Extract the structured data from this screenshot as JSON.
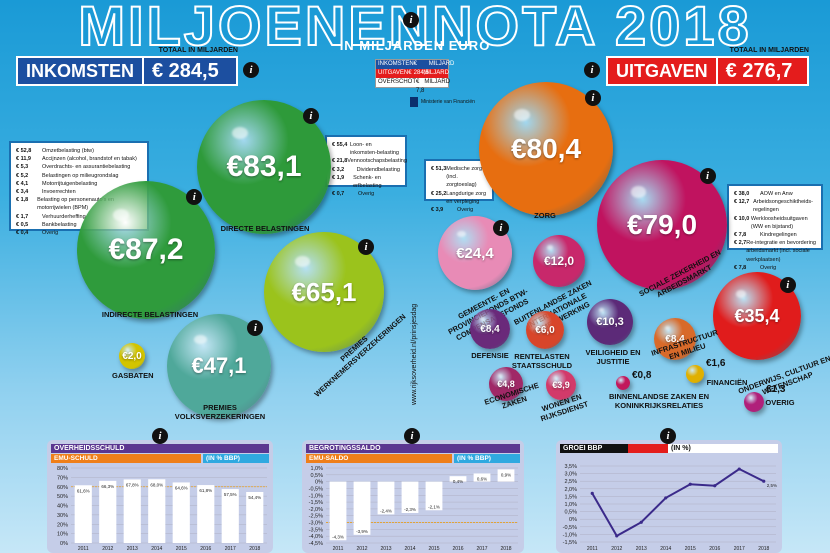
{
  "header": {
    "title": "MILJOENENNOTA 2018",
    "subtitle": "IN MILJARDEN EURO"
  },
  "income": {
    "caption": "TOTAAL IN MILJARDEN",
    "label": "INKOMSTEN",
    "value": "€ 284,5"
  },
  "expense": {
    "caption": "TOTAAL IN MILJARDEN",
    "label": "UITGAVEN",
    "value": "€ 276,7"
  },
  "summary": {
    "rows": [
      {
        "label": "INKOMSTEN",
        "value": "€ 284,5",
        "unit": "MILJARD"
      },
      {
        "label": "UITGAVEN",
        "value": "€ 276,7",
        "unit": "MILJARD"
      },
      {
        "label": "OVERSCHOT",
        "value": "€ 7,8",
        "unit": "MILJARD"
      }
    ],
    "ministry": "Ministerie van Financiën"
  },
  "side_text": "www.rijksoverheid.nl/prinsjesdag",
  "legend_indirect": [
    [
      "€ 52,8",
      "Omzetbelasting (btw)"
    ],
    [
      "€ 11,9",
      "Accijnzen (alcohol, brandstof en tabak)"
    ],
    [
      "€ 5,3",
      "Overdrachts- en assurantiebelasting"
    ],
    [
      "€ 5,2",
      "Belastingen op milieugrondslag"
    ],
    [
      "€ 4,1",
      "Motorrijtuigenbelasting"
    ],
    [
      "€ 3,4",
      "Invoerrechten"
    ],
    [
      "€ 1,8",
      "Belasting op personenauto's en motorrijwielen (BPM)"
    ],
    [
      "€ 1,7",
      "Verhuurderheffing"
    ],
    [
      "€ 0,5",
      "Bankbelasting"
    ],
    [
      "€ 0,4",
      "Overig"
    ]
  ],
  "legend_direct": [
    [
      "€ 55,4",
      "Loon- en inkomsten-belasting"
    ],
    [
      "€ 21,8",
      "Vennootschapsbelasting"
    ],
    [
      "€ 3,2",
      "Dividendbelasting"
    ],
    [
      "€ 1,9",
      "Schenk- en erfbelasting"
    ],
    [
      "€ 0,7",
      "Overig"
    ]
  ],
  "legend_zorg": [
    [
      "€ 51,3",
      "Medische zorg (incl. zorgtoeslag)"
    ],
    [
      "€ 25,2",
      "Langdurige zorg en verpleging"
    ],
    [
      "€ 3,9",
      "Overig"
    ]
  ],
  "legend_social": [
    [
      "€ 38,0",
      "AOW en Anw"
    ],
    [
      "€ 12,7",
      "Arbeidsongeschiktheids-regelingen"
    ],
    [
      "€ 10,0",
      "Werkloosheidsuitgaven (WW en bijstand)"
    ],
    [
      "€ 7,8",
      "Kindregelingen"
    ],
    [
      "€ 2,7",
      "Re-integratie en bevordering arbeidsmarkt (incl. sociale werkplaatsen)"
    ],
    [
      "€ 7,8",
      "Overig"
    ]
  ],
  "balls": [
    {
      "id": "directe",
      "value": "€83,1",
      "label": "DIRECTE BELASTINGEN",
      "color": "#2e9a3a"
    },
    {
      "id": "indirecte",
      "value": "€87,2",
      "label": "INDIRECTE BELASTINGEN",
      "color": "#2f9b3c"
    },
    {
      "id": "werknemers",
      "value": "€65,1",
      "label": "PREMIES WERKNEMERSVERZEKERINGEN",
      "color": "#9bc31c"
    },
    {
      "id": "volks",
      "value": "€47,1",
      "label": "PREMIES VOLKSVERZEKERINGEN",
      "color": "#4fa89a"
    },
    {
      "id": "gas",
      "value": "€2,0",
      "label": "GASBATEN",
      "color": "#d3c400"
    },
    {
      "id": "zorg",
      "value": "€80,4",
      "label": "ZORG",
      "color": "#e76e10"
    },
    {
      "id": "sociaal",
      "value": "€79,0",
      "label": "SOCIALE ZEKERHEID EN ARBEIDSMARKT",
      "color": "#c0135f"
    },
    {
      "id": "gemeenten",
      "value": "€24,4",
      "label": "GEMEENTE- EN PROVINCIEFONDS BTW-COMPENSATIEFONDS",
      "color": "#e88bb6"
    },
    {
      "id": "internationaal",
      "value": "€12,0",
      "label": "BUITENLANDSE ZAKEN INTERNATIONALE SAMENWERKING",
      "color": "#c8286b"
    },
    {
      "id": "onderwijs",
      "value": "€35,4",
      "label": "ONDERWIJS, CULTUUR EN WETENSCHAP",
      "color": "#e01c1c"
    },
    {
      "id": "defensie",
      "value": "€8,4",
      "label": "DEFENSIE",
      "color": "#6a2a7a"
    },
    {
      "id": "rente",
      "value": "€6,0",
      "label": "RENTELASTEN STAATSSCHULD",
      "color": "#d8452a"
    },
    {
      "id": "veiligheid",
      "value": "€10,3",
      "label": "VEILIGHEID EN JUSTITIE",
      "color": "#5c2a78"
    },
    {
      "id": "infra",
      "value": "€8,4",
      "label": "INFRASTRUCTUUR EN MILIEU",
      "color": "#d86a2a"
    },
    {
      "id": "economie",
      "value": "€4,8",
      "label": "ECONOMISCHE ZAKEN",
      "color": "#a02867"
    },
    {
      "id": "wonen",
      "value": "€3,9",
      "label": "WONEN EN RIJKSDIENST",
      "color": "#d23a6a"
    },
    {
      "id": "koninkrijk",
      "value": "€0,8",
      "label": "BINNENLANDSE ZAKEN EN KONINKRIJKSRELATIES",
      "color": "#c2185b"
    },
    {
      "id": "financien",
      "value": "€1,6",
      "label": "FINANCIËN",
      "color": "#e0b000"
    },
    {
      "id": "overig",
      "value": "€1,3",
      "label": "OVERIG",
      "color": "#b0207a"
    }
  ],
  "panels": {
    "schuld": {
      "title": "OVERHEIDSSCHULD",
      "bar": "EMU-SCHULD",
      "unit": "(IN % BBP)"
    },
    "saldo": {
      "title": "BEGROTINGSSALDO",
      "bar": "EMU-SALDO",
      "unit": "(IN % BBP)"
    },
    "groei": {
      "title": "GROEI BBP",
      "unit": "(IN %)"
    }
  },
  "chart_data": [
    {
      "type": "bar",
      "title": "OVERHEIDSSCHULD",
      "subtitle": "EMU-SCHULD (IN % BBP)",
      "categories": [
        "2011",
        "2012",
        "2013",
        "2014",
        "2015",
        "2016",
        "2017",
        "2018"
      ],
      "values": [
        61.6,
        66.3,
        67.8,
        68.0,
        64.6,
        61.8,
        57.5,
        54.4
      ],
      "labels": [
        "61,6%",
        "66,3%",
        "67,8%",
        "68,0%",
        "64,6%",
        "61,8%",
        "57,5%",
        "54,4%"
      ],
      "ylim": [
        0,
        80
      ],
      "yticks": [
        "0%",
        "10%",
        "20%",
        "30%",
        "40%",
        "50%",
        "60%",
        "70%",
        "80%"
      ],
      "ref_lines": [
        60
      ]
    },
    {
      "type": "bar",
      "title": "BEGROTINGSSALDO",
      "subtitle": "EMU-SALDO (IN % BBP)",
      "categories": [
        "2011",
        "2012",
        "2013",
        "2014",
        "2015",
        "2016",
        "2017",
        "2018"
      ],
      "values": [
        -4.3,
        -3.9,
        -2.4,
        -2.3,
        -2.1,
        0.4,
        0.6,
        0.9
      ],
      "labels": [
        "-4,3%",
        "-3,9%",
        "-2,4%",
        "-2,3%",
        "-2,1%",
        "0,4%",
        "0,6%",
        "0,9%"
      ],
      "ylim": [
        -4.5,
        1.0
      ],
      "yticks": [
        "1,0%",
        "0,5%",
        "0%",
        "-0,5%",
        "-1,0%",
        "-1,5%",
        "-2,0%",
        "-2,5%",
        "-3,0%",
        "-3,5%",
        "-4,0%",
        "-4,5%"
      ],
      "ref_lines": [
        -3
      ]
    },
    {
      "type": "line",
      "title": "GROEI BBP",
      "subtitle": "(IN %)",
      "categories": [
        "2011",
        "2012",
        "2013",
        "2014",
        "2015",
        "2016",
        "2017",
        "2018"
      ],
      "values": [
        1.7,
        -1.1,
        -0.2,
        1.4,
        2.3,
        2.2,
        3.3,
        2.5
      ],
      "labels": [
        "",
        "",
        "",
        "",
        "",
        "",
        "",
        "2,5%"
      ],
      "ylim": [
        -1.5,
        3.5
      ],
      "yticks": [
        "3,5%",
        "3,0%",
        "2,5%",
        "2,0%",
        "1,5%",
        "1,0%",
        "0,5%",
        "0%",
        "-0,5%",
        "-1,0%",
        "-1,5%"
      ]
    }
  ]
}
